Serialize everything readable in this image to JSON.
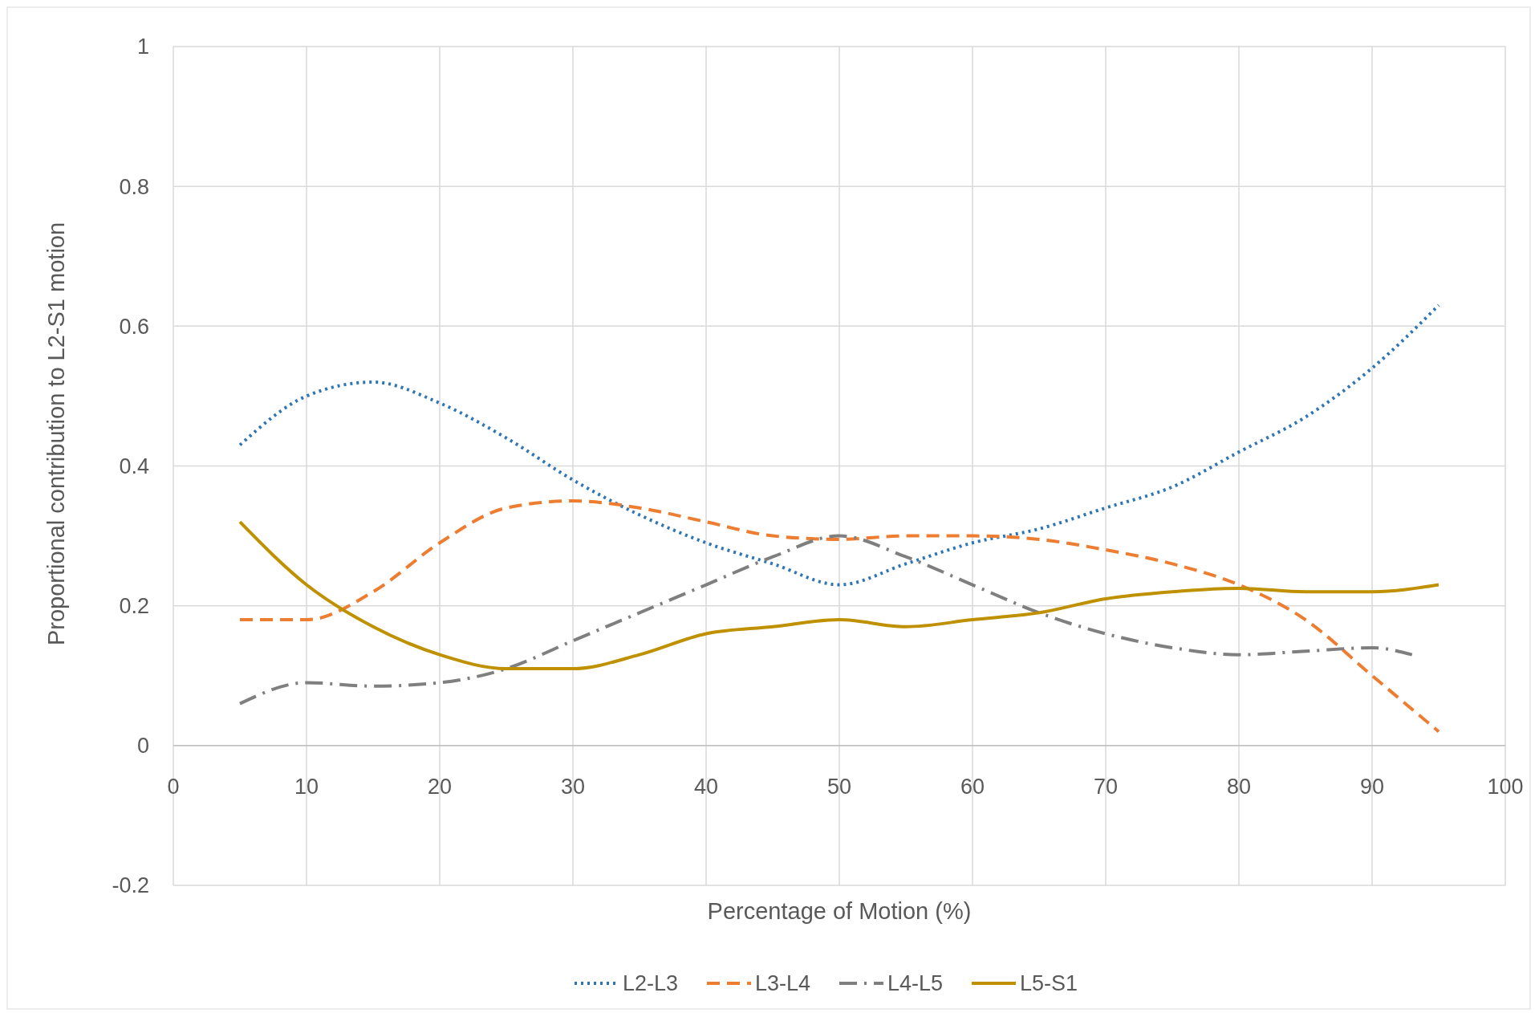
{
  "chart_data": {
    "type": "line",
    "xlabel": "Percentage of Motion (%)",
    "ylabel": "Proportional contribution to L2-S1 motion",
    "xlim": [
      0,
      100
    ],
    "xticks": [
      0,
      10,
      20,
      30,
      40,
      50,
      60,
      70,
      80,
      90,
      100
    ],
    "ylim": [
      -0.2,
      1
    ],
    "yticks": [
      -0.2,
      0,
      0.2,
      0.4,
      0.6,
      0.8,
      1
    ],
    "grid": true,
    "legend": "bottom",
    "series": [
      {
        "name": "L2-L3",
        "color": "#2e75b6",
        "line_style": "dotted",
        "x": [
          5,
          10,
          15,
          20,
          25,
          30,
          35,
          40,
          45,
          50,
          55,
          60,
          65,
          70,
          75,
          80,
          85,
          90,
          95
        ],
        "values": [
          0.43,
          0.5,
          0.52,
          0.49,
          0.44,
          0.38,
          0.33,
          0.29,
          0.26,
          0.23,
          0.26,
          0.29,
          0.31,
          0.34,
          0.37,
          0.42,
          0.47,
          0.54,
          0.63
        ]
      },
      {
        "name": "L3-L4",
        "color": "#ed7d31",
        "line_style": "dashed",
        "x": [
          5,
          10,
          15,
          20,
          25,
          30,
          35,
          40,
          45,
          50,
          55,
          60,
          65,
          70,
          75,
          80,
          85,
          90,
          95
        ],
        "values": [
          0.18,
          0.18,
          0.22,
          0.29,
          0.34,
          0.35,
          0.34,
          0.32,
          0.3,
          0.295,
          0.3,
          0.3,
          0.295,
          0.28,
          0.26,
          0.23,
          0.18,
          0.1,
          0.02
        ]
      },
      {
        "name": "L4-L5",
        "color": "#7f7f7f",
        "line_style": "dashdot",
        "x": [
          5,
          10,
          15,
          20,
          25,
          30,
          35,
          40,
          45,
          50,
          55,
          60,
          65,
          70,
          75,
          80,
          85,
          90,
          93
        ],
        "values": [
          0.06,
          0.09,
          0.085,
          0.09,
          0.11,
          0.15,
          0.19,
          0.23,
          0.27,
          0.3,
          0.27,
          0.23,
          0.19,
          0.16,
          0.14,
          0.13,
          0.135,
          0.14,
          0.13
        ]
      },
      {
        "name": "L5-S1",
        "color": "#bf9000",
        "line_style": "solid",
        "x": [
          5,
          10,
          15,
          20,
          25,
          30,
          35,
          40,
          45,
          50,
          55,
          60,
          65,
          70,
          75,
          80,
          85,
          90,
          95
        ],
        "values": [
          0.32,
          0.23,
          0.17,
          0.13,
          0.11,
          0.11,
          0.13,
          0.16,
          0.17,
          0.18,
          0.17,
          0.18,
          0.19,
          0.21,
          0.22,
          0.225,
          0.22,
          0.22,
          0.23
        ]
      }
    ]
  }
}
